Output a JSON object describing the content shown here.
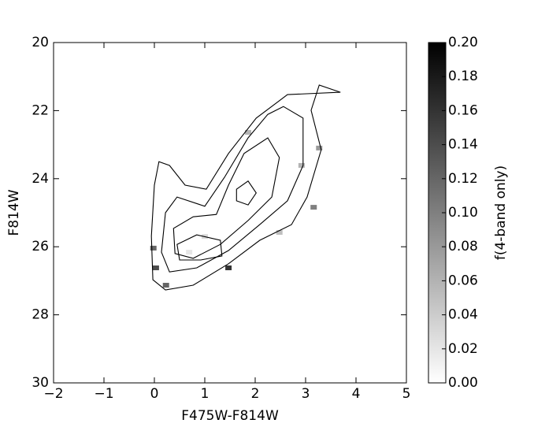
{
  "chart_data": {
    "type": "contour",
    "xlabel": "F475W-F814W",
    "ylabel": "F814W",
    "colorbar_label": "f(4-band only)",
    "xlim": [
      -2,
      5
    ],
    "ylim": [
      30,
      20
    ],
    "y_inverted": true,
    "xticks": [
      {
        "value": -2,
        "label": "−2"
      },
      {
        "value": -1,
        "label": "−1"
      },
      0,
      1,
      2,
      3,
      4,
      5
    ],
    "yticks": [
      20,
      22,
      24,
      26,
      28,
      30
    ],
    "clim": [
      0,
      0.2
    ],
    "cticks": [
      {
        "value": 0,
        "label": "0.00"
      },
      {
        "value": 0.02,
        "label": "0.02"
      },
      {
        "value": 0.04,
        "label": "0.04"
      },
      {
        "value": 0.06,
        "label": "0.06"
      },
      {
        "value": 0.08,
        "label": "0.08"
      },
      {
        "value": 0.1,
        "label": "0.10"
      },
      {
        "value": 0.12,
        "label": "0.12"
      },
      {
        "value": 0.14,
        "label": "0.14"
      },
      {
        "value": 0.16,
        "label": "0.16"
      },
      {
        "value": 0.18,
        "label": "0.18"
      },
      {
        "value": 0.2,
        "label": "0.20"
      }
    ],
    "contour_color": "#000000",
    "contours": [
      {
        "x": [
          3.69,
          3.27,
          3.11,
          3.31,
          3.03,
          2.72,
          2.09,
          1.47,
          0.77,
          0.22,
          -0.03,
          -0.06,
          0.0,
          0.09,
          0.3,
          0.61,
          1.03,
          1.47,
          2.02,
          2.64
        ],
        "y": [
          21.46,
          21.25,
          21.99,
          23.15,
          24.54,
          25.35,
          25.81,
          26.5,
          27.13,
          27.27,
          26.97,
          25.69,
          24.19,
          23.5,
          23.61,
          24.19,
          24.31,
          23.26,
          22.22,
          21.53
        ]
      },
      {
        "x": [
          2.56,
          2.95,
          2.95,
          2.64,
          2.09,
          1.47,
          0.84,
          0.3,
          0.14,
          0.22,
          0.45,
          1.0,
          1.39,
          1.86,
          2.25
        ],
        "y": [
          21.88,
          22.22,
          23.61,
          24.65,
          25.35,
          26.11,
          26.62,
          26.74,
          26.16,
          25.0,
          24.54,
          24.81,
          23.96,
          22.8,
          22.11
        ]
      },
      {
        "x": [
          2.25,
          2.48,
          2.33,
          1.86,
          1.31,
          0.77,
          0.41,
          0.38,
          0.77,
          1.23,
          1.47,
          1.78
        ],
        "y": [
          22.8,
          23.38,
          24.54,
          25.23,
          25.93,
          26.34,
          26.2,
          25.46,
          25.12,
          25.05,
          24.19,
          23.26
        ]
      },
      {
        "x": [
          0.45,
          0.84,
          1.31,
          1.34,
          0.92,
          0.5
        ],
        "y": [
          25.93,
          25.65,
          25.81,
          26.27,
          26.39,
          26.39
        ]
      },
      {
        "x": [
          1.63,
          1.86,
          2.02,
          1.86,
          1.63
        ],
        "y": [
          24.31,
          24.07,
          24.42,
          24.77,
          24.65
        ]
      }
    ],
    "cells": {
      "x": [
        -0.02,
        0.03,
        1.47,
        3.16,
        3.27,
        2.92,
        1.86,
        1.0,
        0.69,
        2.48,
        0.23
      ],
      "y": [
        26.04,
        26.62,
        26.62,
        24.84,
        23.1,
        23.61,
        22.64,
        25.7,
        26.16,
        25.58,
        27.13
      ],
      "values": [
        0.12,
        0.14,
        0.16,
        0.1,
        0.08,
        0.06,
        0.06,
        0.03,
        0.02,
        0.05,
        0.12
      ]
    }
  }
}
